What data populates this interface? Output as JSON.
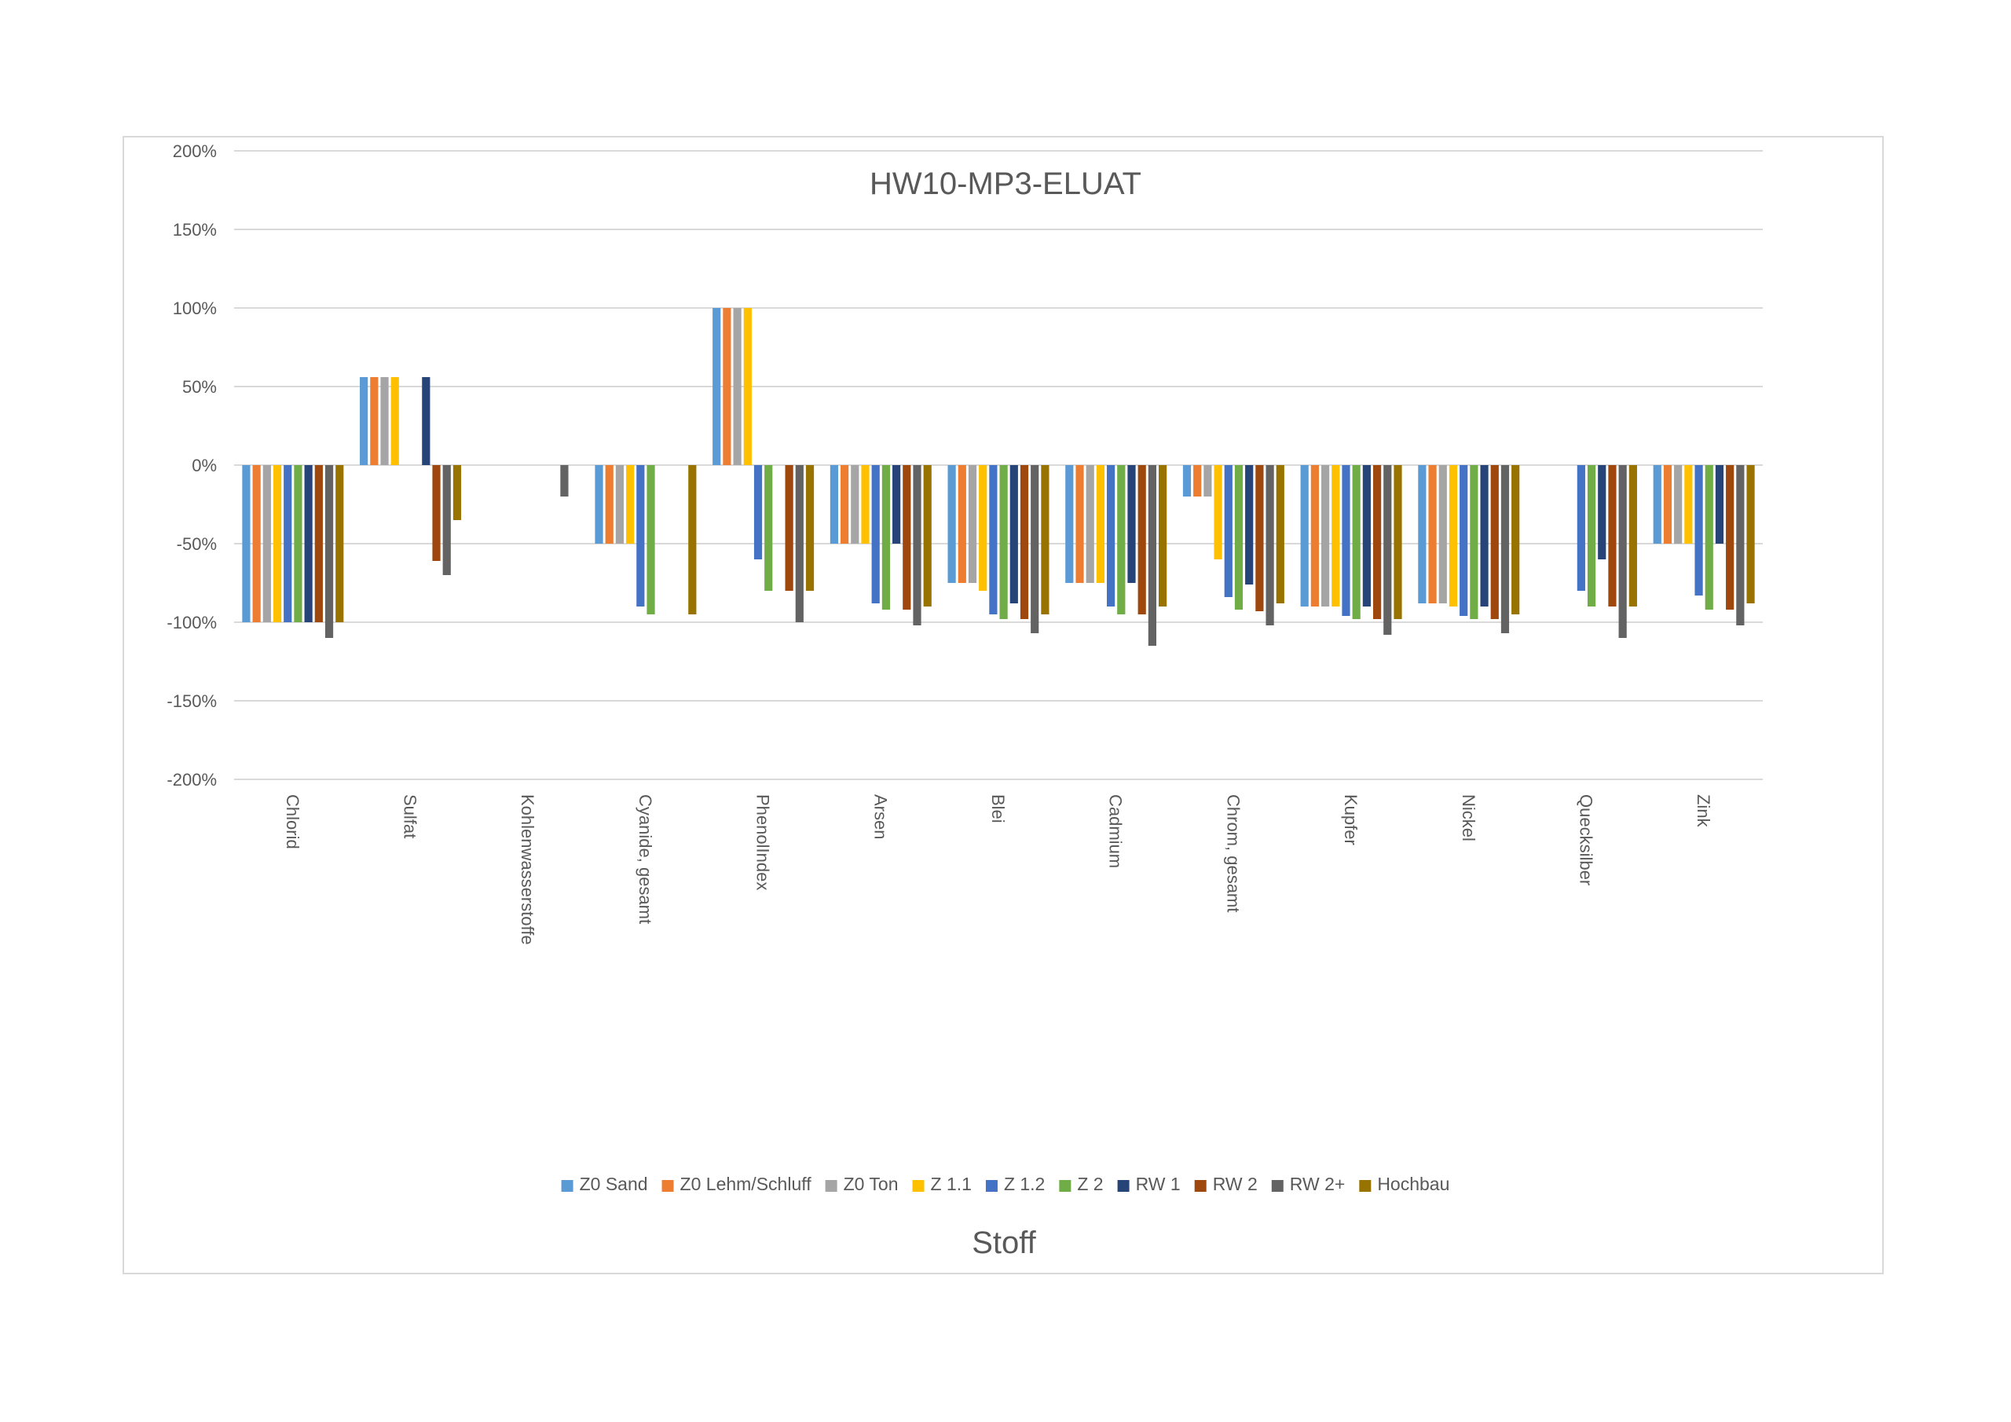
{
  "chart_data": {
    "type": "bar",
    "title": "HW10-MP3-ELUAT",
    "xlabel": "Stoff",
    "ylabel": "",
    "ylim": [
      -2,
      2
    ],
    "yticks": [
      2,
      1.5,
      1,
      0.5,
      0,
      -0.5,
      -1,
      -1.5,
      -2
    ],
    "ytick_labels": [
      "200%",
      "150%",
      "100%",
      "50%",
      "0%",
      "-50%",
      "-100%",
      "-150%",
      "-200%"
    ],
    "grid": true,
    "legend_position": "bottom",
    "categories": [
      "Chlorid",
      "Sulfat",
      "Kohlenwasserstoffe",
      "Cyanide, gesamt",
      "PhenolIndex",
      "Arsen",
      "Blei",
      "Cadmium",
      "Chrom, gesamt",
      "Kupfer",
      "Nickel",
      "Quecksilber",
      "Zink"
    ],
    "series": [
      {
        "name": "Z0 Sand",
        "color": "#5b9bd5",
        "values": [
          -1.0,
          0.56,
          null,
          -0.5,
          1.0,
          -0.5,
          -0.75,
          -0.75,
          -0.2,
          -0.9,
          -0.88,
          null,
          -0.5
        ]
      },
      {
        "name": "Z0 Lehm/Schluff",
        "color": "#ed7d31",
        "values": [
          -1.0,
          0.56,
          null,
          -0.5,
          1.0,
          -0.5,
          -0.75,
          -0.75,
          -0.2,
          -0.9,
          -0.88,
          null,
          -0.5
        ]
      },
      {
        "name": "Z0 Ton",
        "color": "#a5a5a5",
        "values": [
          -1.0,
          0.56,
          null,
          -0.5,
          1.0,
          -0.5,
          -0.75,
          -0.75,
          -0.2,
          -0.9,
          -0.88,
          null,
          -0.5
        ]
      },
      {
        "name": "Z 1.1",
        "color": "#ffc000",
        "values": [
          -1.0,
          0.56,
          null,
          -0.5,
          1.0,
          -0.5,
          -0.8,
          -0.75,
          -0.6,
          -0.9,
          -0.9,
          null,
          -0.5
        ]
      },
      {
        "name": "Z 1.2",
        "color": "#4472c4",
        "values": [
          -1.0,
          null,
          null,
          -0.9,
          -0.6,
          -0.88,
          -0.95,
          -0.9,
          -0.84,
          -0.96,
          -0.96,
          -0.8,
          -0.83
        ]
      },
      {
        "name": "Z 2",
        "color": "#70ad47",
        "values": [
          -1.0,
          null,
          null,
          -0.95,
          -0.8,
          -0.92,
          -0.98,
          -0.95,
          -0.92,
          -0.98,
          -0.98,
          -0.9,
          -0.92
        ]
      },
      {
        "name": "RW 1",
        "color": "#264478",
        "values": [
          -1.0,
          0.56,
          null,
          null,
          null,
          -0.5,
          -0.88,
          -0.75,
          -0.76,
          -0.9,
          -0.9,
          -0.6,
          -0.5
        ]
      },
      {
        "name": "RW 2",
        "color": "#9e480e",
        "values": [
          -1.0,
          -0.61,
          null,
          null,
          -0.8,
          -0.92,
          -0.98,
          -0.95,
          -0.93,
          -0.98,
          -0.98,
          -0.9,
          -0.92
        ]
      },
      {
        "name": "RW 2+",
        "color": "#636363",
        "values": [
          -1.1,
          -0.7,
          -0.2,
          null,
          -1.0,
          -1.02,
          -1.07,
          -1.15,
          -1.02,
          -1.08,
          -1.07,
          -1.1,
          -1.02
        ]
      },
      {
        "name": "Hochbau",
        "color": "#997300",
        "values": [
          -1.0,
          -0.35,
          null,
          -0.95,
          -0.8,
          -0.9,
          -0.95,
          -0.9,
          -0.88,
          -0.98,
          -0.95,
          -0.9,
          -0.88
        ]
      }
    ]
  }
}
